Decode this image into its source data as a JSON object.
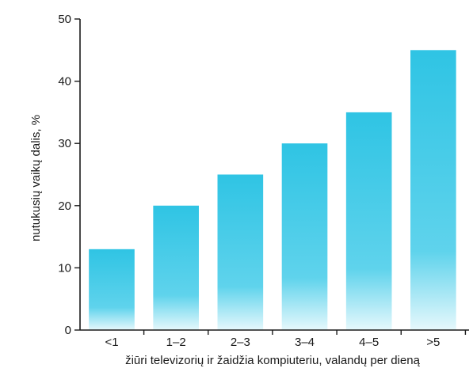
{
  "chart_data": {
    "type": "bar",
    "categories": [
      "<1",
      "1–2",
      "2–3",
      "3–4",
      "4–5",
      ">5"
    ],
    "values": [
      13,
      20,
      25,
      30,
      35,
      45
    ],
    "xlabel": "žiūri televizorių ir žaidžia kompiuteriu, valandų per dieną",
    "ylabel": "nutukusių vaikų dalis, %",
    "ylim": [
      0,
      50
    ],
    "yticks": [
      0,
      10,
      20,
      30,
      40,
      50
    ],
    "grid": false,
    "bar_color_top": "#2fc4e4",
    "bar_color_bottom": "#e6f8fc"
  }
}
